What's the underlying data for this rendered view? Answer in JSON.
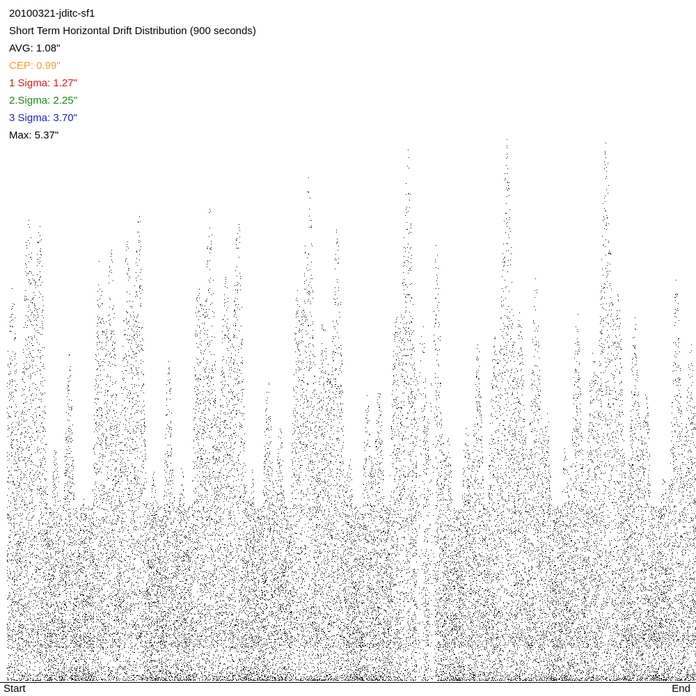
{
  "chart_data": {
    "type": "scatter",
    "title": "20100321-jditc-sf1",
    "subtitle": "Short Term Horizontal Drift Distribution (900 seconds)",
    "annotations": [
      {
        "label": "AVG: 1.08\"",
        "color": "#000000"
      },
      {
        "label": "CEP: 0.99\"",
        "color": "#f0a030"
      },
      {
        "label": "1 Sigma: 1.27\"",
        "color": "#e01818"
      },
      {
        "label": "2.Sigma: 2.25\"",
        "color": "#1a8a1a"
      },
      {
        "label": "3 Sigma: 3.70\"",
        "color": "#2020c0"
      },
      {
        "label": "Max: 5.37\"",
        "color": "#000000"
      }
    ],
    "x_start_label": "Start",
    "x_end_label": "End",
    "color": "#000000"
  }
}
